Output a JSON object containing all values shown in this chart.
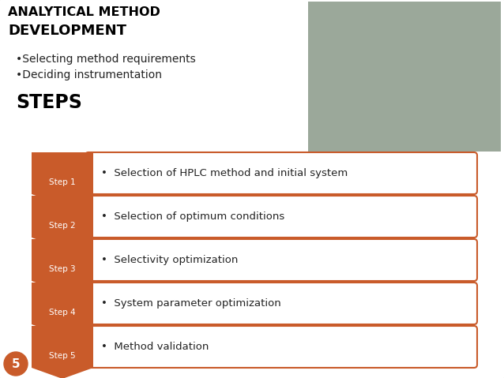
{
  "title_line1": "ANALYTICAL METHOD",
  "title_line2": "DEVELOPMENT",
  "bullet1": "•Selecting method requirements",
  "bullet2": "•Deciding instrumentation",
  "steps_label": "STEPS",
  "steps": [
    {
      "label": "Step 1",
      "text": "•  Selection of HPLC method and initial system"
    },
    {
      "label": "Step 2",
      "text": "•  Selection of optimum conditions"
    },
    {
      "label": "Step 3",
      "text": "•  Selectivity optimization"
    },
    {
      "label": "Step 4",
      "text": "•  System parameter optimization"
    },
    {
      "label": "Step 5",
      "text": "•  Method validation"
    }
  ],
  "arrow_color": "#C95B2A",
  "box_edge_color": "#C95B2A",
  "box_face_color": "#FFFFFF",
  "step_label_color": "#FFFFFF",
  "bg_color": "#FFFFFF",
  "slide_bg": "#E8E8E8",
  "page_num": "5",
  "page_circle_color": "#C95B2A",
  "title_color": "#000000",
  "text_color": "#222222",
  "fig_width": 6.38,
  "fig_height": 4.79,
  "dpi": 100
}
